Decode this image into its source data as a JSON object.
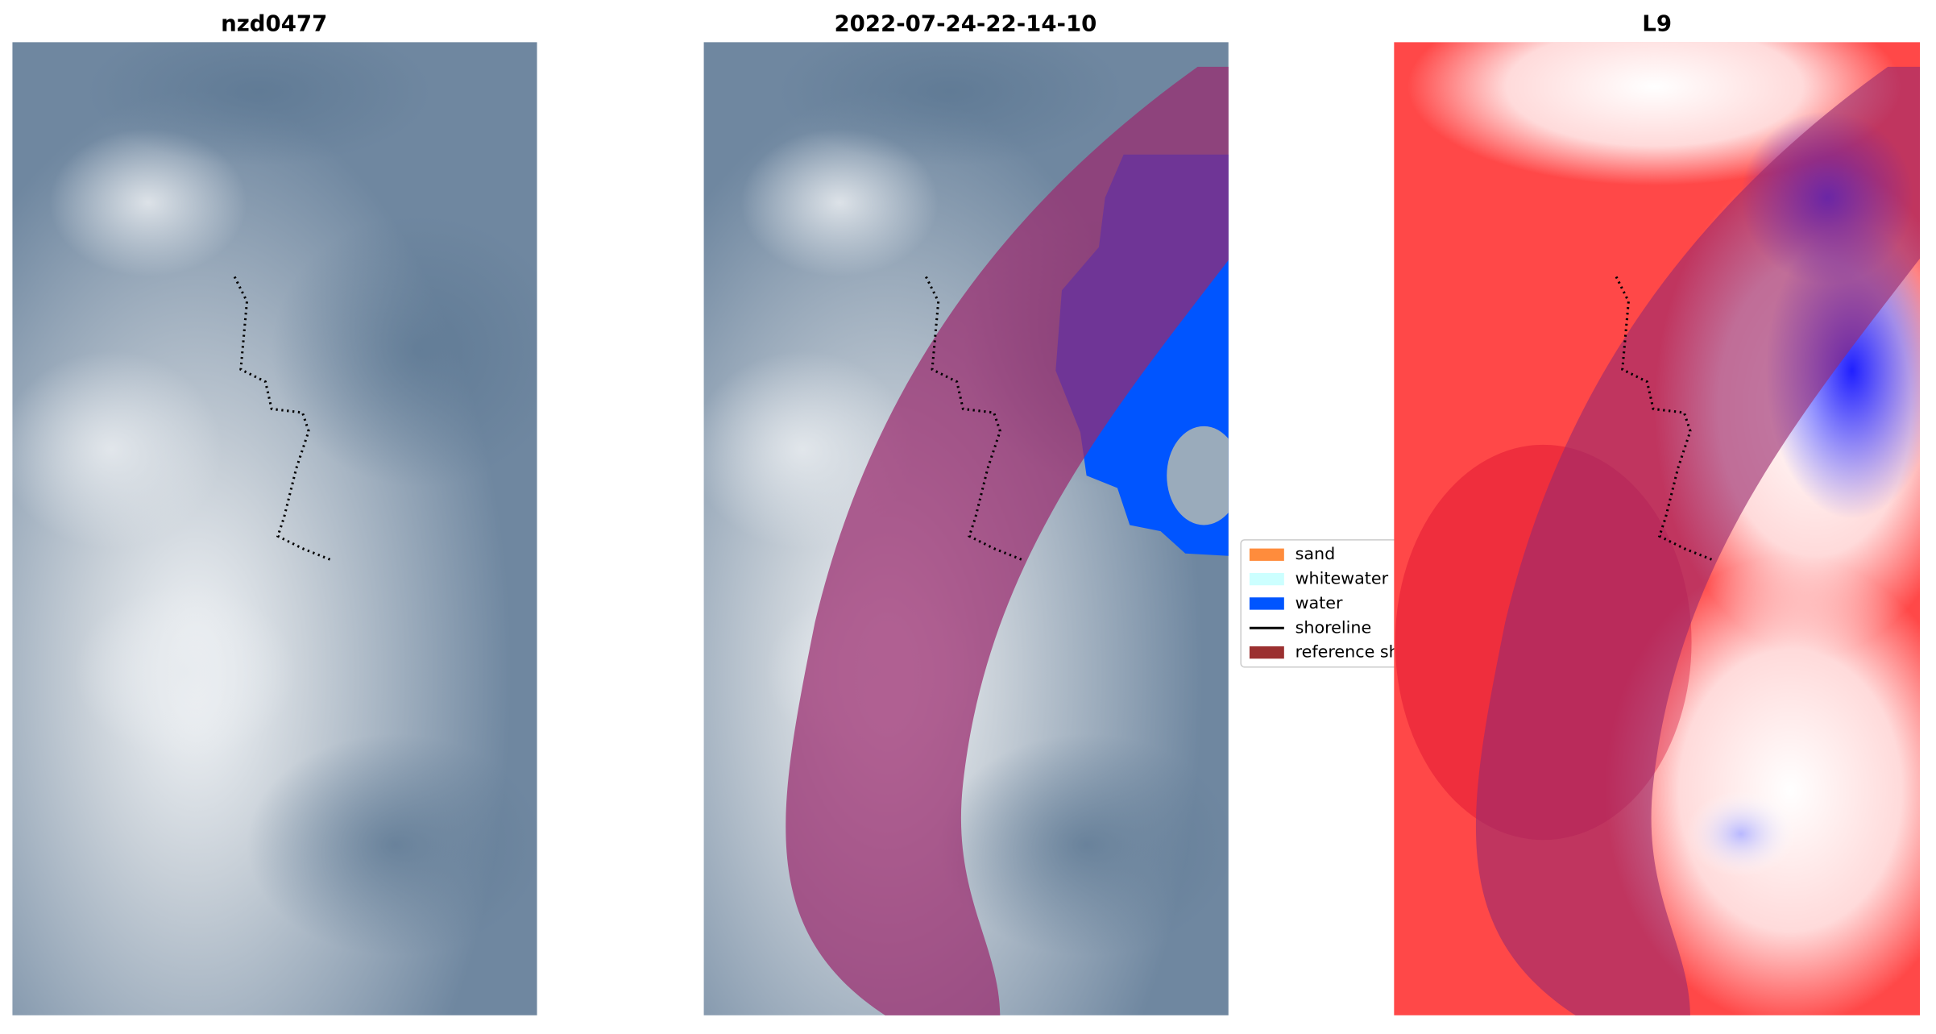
{
  "panels": [
    {
      "title": "nzd0477"
    },
    {
      "title": "2022-07-24-22-14-10"
    },
    {
      "title": "L9"
    }
  ],
  "legend": {
    "items": [
      {
        "label": "sand",
        "color": "#ff8c3c",
        "kind": "patch"
      },
      {
        "label": "whitewater",
        "color": "#ccffff",
        "kind": "patch"
      },
      {
        "label": "water",
        "color": "#0055ff",
        "kind": "patch"
      },
      {
        "label": "shoreline",
        "color": "#000000",
        "kind": "line"
      },
      {
        "label": "reference sh",
        "color": "#9b3030",
        "kind": "patch"
      }
    ]
  }
}
